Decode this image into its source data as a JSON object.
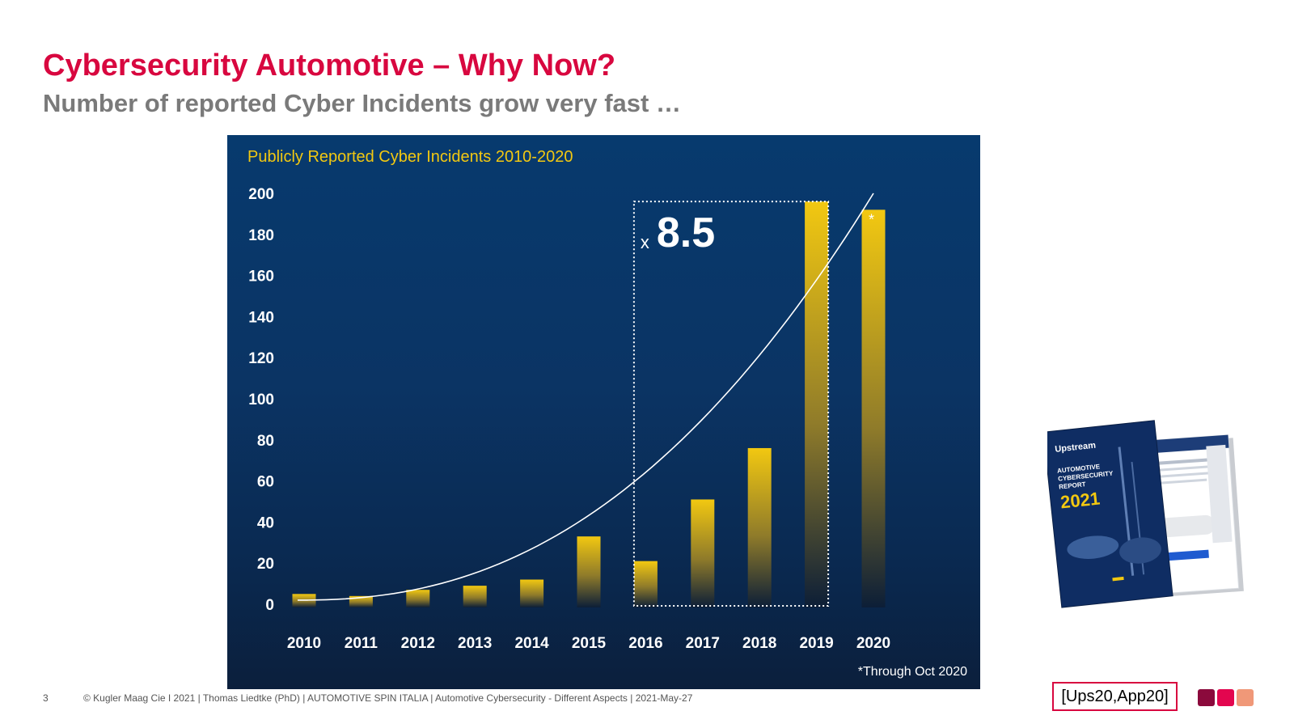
{
  "slide": {
    "title": "Cybersecurity Automotive – Why Now?",
    "subtitle": "Number of reported Cyber Incidents grow very fast …",
    "page_number": "3",
    "footer": "© Kugler Maag Cie I 2021 | Thomas Liedtke (PhD) | AUTOMOTIVE SPIN ITALIA | Automotive Cybersecurity - Different Aspects | 2021-May-27",
    "citation": "[Ups20,App20]",
    "brand_colors": [
      "#8b0a3c",
      "#e3064f",
      "#f09878"
    ],
    "title_color": "#d8073f"
  },
  "report_thumbnail": {
    "brand": "Upstream",
    "line1": "AUTOMOTIVE",
    "line2": "CYBERSECURITY",
    "line3": "REPORT",
    "year": "2021"
  },
  "chart_data": {
    "type": "bar",
    "title": "Publicly Reported Cyber Incidents 2010-2020",
    "categories": [
      "2010",
      "2011",
      "2012",
      "2013",
      "2014",
      "2015",
      "2016",
      "2017",
      "2018",
      "2019",
      "2020"
    ],
    "values": [
      5,
      4,
      7,
      9,
      12,
      33,
      21,
      51,
      76,
      196,
      192
    ],
    "ylim": [
      0,
      200
    ],
    "yticks": [
      0,
      20,
      40,
      60,
      80,
      100,
      120,
      140,
      160,
      180,
      200
    ],
    "trendline": "exponential",
    "multiplier_label": "x",
    "multiplier_value": "8.5",
    "bar_marker": "*",
    "footnote": "*Through Oct 2020",
    "bar_color": "#f2c811",
    "title_color": "#f2c811"
  }
}
